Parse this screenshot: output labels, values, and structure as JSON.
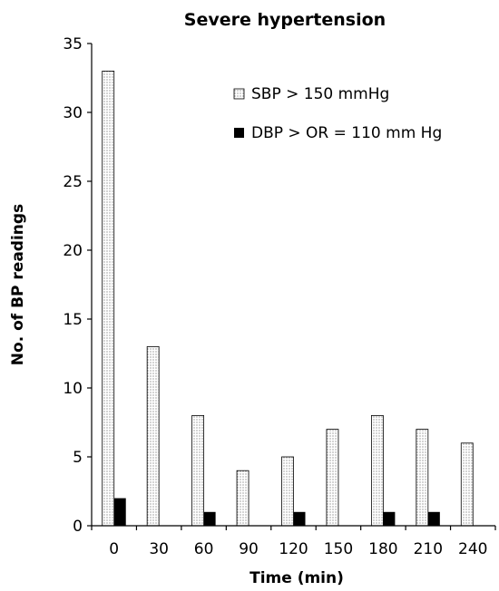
{
  "chart_data": {
    "type": "bar",
    "title": "Severe hypertension",
    "xlabel": "Time (min)",
    "ylabel": "No. of BP readings",
    "categories": [
      "0",
      "30",
      "60",
      "90",
      "120",
      "150",
      "180",
      "210",
      "240"
    ],
    "ylim": [
      0,
      35
    ],
    "yticks": [
      "0",
      "5",
      "10",
      "15",
      "20",
      "25",
      "30",
      "35"
    ],
    "series": [
      {
        "name": "SBP > 150 mmHg",
        "values": [
          33,
          13,
          8,
          4,
          5,
          7,
          8,
          7,
          6
        ],
        "fill": "dotted"
      },
      {
        "name": "DBP > OR = 110 mm Hg",
        "values": [
          2,
          0,
          1,
          0,
          1,
          0,
          1,
          1,
          0
        ],
        "fill": "#000000"
      }
    ],
    "legend_position": "top-right",
    "grid": false
  }
}
